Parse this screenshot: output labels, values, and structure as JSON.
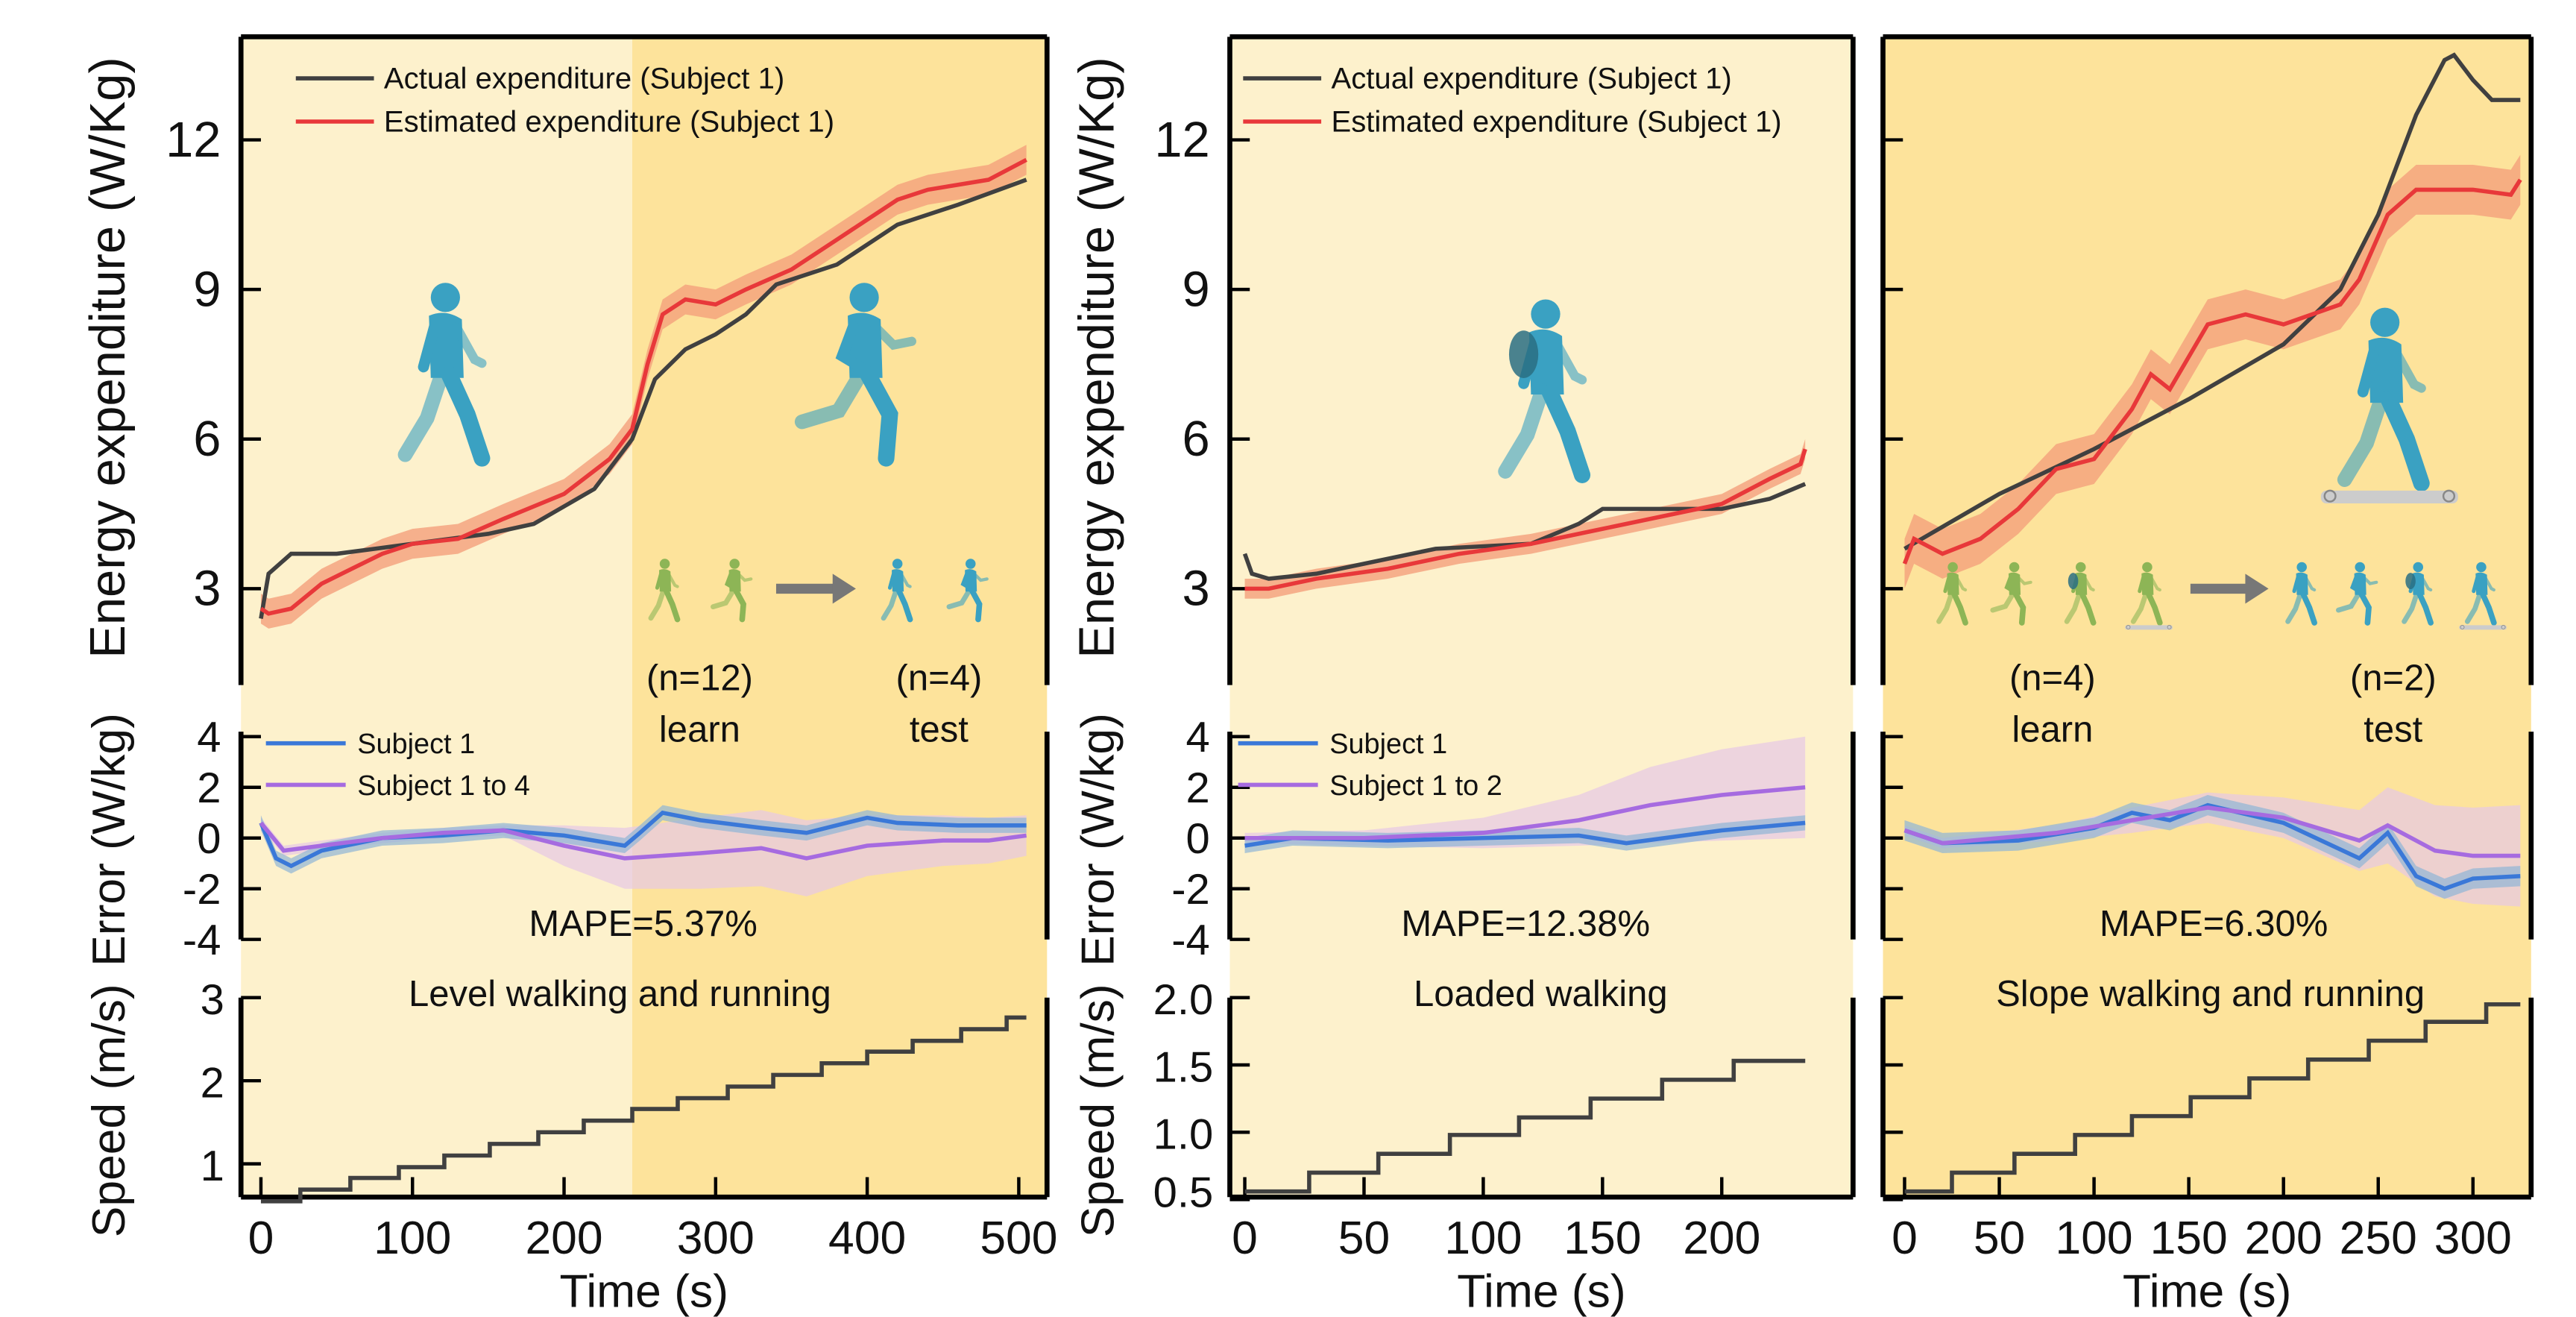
{
  "colors": {
    "light_bg": "#fdf1cc",
    "dark_bg": "#fde39b",
    "actual": "#404040",
    "estimated": "#e8383a",
    "estimated_band": "#f4a07c",
    "subject1": "#3a78d8",
    "subject1_band": "#8fb5d6",
    "group": "#a66be0",
    "group_band": "#e6c7e6",
    "speed": "#404040",
    "learn_figure": "#8db556",
    "test_figure": "#3aa1c2",
    "arrow": "#777777"
  },
  "chart_data": [
    {
      "type": "line",
      "title": "Level walking and running",
      "mape": "MAPE=5.37%",
      "background": {
        "light_until": 245,
        "after": "dark"
      },
      "xlabel": "Time (s)",
      "xlim": [
        -13,
        519
      ],
      "xticks": [
        0,
        100,
        200,
        300,
        400,
        500
      ],
      "xtick_labels": [
        "0",
        "100",
        "200",
        "300",
        "400",
        "500"
      ],
      "learn": {
        "n": "(n=12)",
        "label": "learn"
      },
      "test": {
        "n": "(n=4)",
        "label": "test"
      },
      "energy": {
        "ylabel": "Energy expenditure (W/Kg)",
        "ylim": [
          1.1,
          14.1
        ],
        "yticks": [
          3,
          6,
          9,
          12
        ],
        "ytick_labels": [
          "3",
          "6",
          "9",
          "12"
        ],
        "legend": [
          "Actual expenditure (Subject 1)",
          "Estimated expenditure (Subject 1)"
        ],
        "actual": [
          [
            0,
            2.4
          ],
          [
            5,
            3.3
          ],
          [
            20,
            3.7
          ],
          [
            50,
            3.7
          ],
          [
            100,
            3.9
          ],
          [
            150,
            4.1
          ],
          [
            180,
            4.3
          ],
          [
            220,
            5.0
          ],
          [
            245,
            6.0
          ],
          [
            260,
            7.2
          ],
          [
            280,
            7.8
          ],
          [
            300,
            8.1
          ],
          [
            320,
            8.5
          ],
          [
            340,
            9.1
          ],
          [
            380,
            9.5
          ],
          [
            420,
            10.3
          ],
          [
            460,
            10.7
          ],
          [
            505,
            11.2
          ]
        ],
        "estimated": [
          [
            0,
            2.6
          ],
          [
            5,
            2.5
          ],
          [
            20,
            2.6
          ],
          [
            40,
            3.1
          ],
          [
            60,
            3.4
          ],
          [
            80,
            3.7
          ],
          [
            100,
            3.9
          ],
          [
            130,
            4.0
          ],
          [
            160,
            4.4
          ],
          [
            200,
            4.9
          ],
          [
            230,
            5.6
          ],
          [
            245,
            6.2
          ],
          [
            255,
            7.5
          ],
          [
            265,
            8.5
          ],
          [
            280,
            8.8
          ],
          [
            300,
            8.7
          ],
          [
            320,
            9.0
          ],
          [
            350,
            9.4
          ],
          [
            380,
            10.0
          ],
          [
            420,
            10.8
          ],
          [
            440,
            11.0
          ],
          [
            460,
            11.1
          ],
          [
            480,
            11.2
          ],
          [
            505,
            11.6
          ]
        ],
        "estimated_ci": 0.3
      },
      "error": {
        "ylabel": "Error (W/kg)",
        "ylim": [
          -4,
          4
        ],
        "yticks": [
          4,
          2,
          0,
          -2,
          -4
        ],
        "ytick_labels": [
          "4",
          "2",
          "0",
          "-2",
          "-4"
        ],
        "legend": [
          "Subject 1",
          "Subject 1 to 4"
        ],
        "subject1": [
          [
            0,
            0.6
          ],
          [
            10,
            -0.8
          ],
          [
            20,
            -1.1
          ],
          [
            40,
            -0.5
          ],
          [
            80,
            0
          ],
          [
            120,
            0.1
          ],
          [
            160,
            0.3
          ],
          [
            200,
            0.1
          ],
          [
            240,
            -0.3
          ],
          [
            250,
            0.2
          ],
          [
            265,
            1.0
          ],
          [
            290,
            0.7
          ],
          [
            330,
            0.4
          ],
          [
            360,
            0.2
          ],
          [
            400,
            0.8
          ],
          [
            420,
            0.6
          ],
          [
            460,
            0.5
          ],
          [
            505,
            0.5
          ]
        ],
        "subject1_ci": 0.3,
        "group": [
          [
            0,
            0.6
          ],
          [
            15,
            -0.5
          ],
          [
            40,
            -0.3
          ],
          [
            80,
            0
          ],
          [
            120,
            0.2
          ],
          [
            160,
            0.3
          ],
          [
            200,
            -0.3
          ],
          [
            240,
            -0.8
          ],
          [
            290,
            -0.6
          ],
          [
            330,
            -0.4
          ],
          [
            360,
            -0.8
          ],
          [
            400,
            -0.3
          ],
          [
            450,
            -0.1
          ],
          [
            480,
            -0.1
          ],
          [
            505,
            0.1
          ]
        ],
        "group_ci": [
          0.2,
          0.2,
          0.2,
          0.2,
          0.2,
          0.2,
          0.8,
          1.2,
          1.4,
          1.5,
          1.5,
          1.2,
          1.0,
          0.9,
          0.8
        ]
      },
      "speed": {
        "ylabel": "Speed (m/s)",
        "ylim": [
          0.6,
          3.0
        ],
        "yticks": [
          1,
          2,
          3
        ],
        "ytick_labels": [
          "1",
          "2",
          "3"
        ],
        "steps": [
          [
            0,
            0.55
          ],
          [
            26,
            0.69
          ],
          [
            59,
            0.83
          ],
          [
            91,
            0.96
          ],
          [
            121,
            1.1
          ],
          [
            151,
            1.24
          ],
          [
            183,
            1.38
          ],
          [
            213,
            1.52
          ],
          [
            245,
            1.66
          ],
          [
            275,
            1.79
          ],
          [
            308,
            1.93
          ],
          [
            338,
            2.07
          ],
          [
            370,
            2.21
          ],
          [
            400,
            2.35
          ],
          [
            430,
            2.48
          ],
          [
            462,
            2.62
          ],
          [
            492,
            2.76
          ]
        ],
        "end": 505
      }
    },
    {
      "type": "line",
      "title": "Loaded walking",
      "mape": "MAPE=12.38%",
      "background": {
        "light_until": 1000,
        "after": "dark"
      },
      "xlabel": "Time (s)",
      "xlim": [
        -6,
        255
      ],
      "xticks": [
        0,
        50,
        100,
        150,
        200
      ],
      "xtick_labels": [
        "0",
        "50",
        "100",
        "150",
        "200"
      ],
      "energy": {
        "ylabel": "Energy expenditure (W/Kg)",
        "ylim": [
          1.1,
          14.1
        ],
        "yticks": [
          3,
          6,
          9,
          12
        ],
        "ytick_labels": [
          "3",
          "6",
          "9",
          "12"
        ],
        "legend": [
          "Actual expenditure (Subject 1)",
          "Estimated expenditure (Subject 1)"
        ],
        "actual": [
          [
            0,
            3.7
          ],
          [
            3,
            3.3
          ],
          [
            10,
            3.2
          ],
          [
            30,
            3.3
          ],
          [
            60,
            3.6
          ],
          [
            80,
            3.8
          ],
          [
            120,
            3.9
          ],
          [
            140,
            4.3
          ],
          [
            150,
            4.6
          ],
          [
            170,
            4.6
          ],
          [
            200,
            4.6
          ],
          [
            220,
            4.8
          ],
          [
            235,
            5.1
          ]
        ],
        "estimated": [
          [
            0,
            3.0
          ],
          [
            10,
            3.0
          ],
          [
            30,
            3.2
          ],
          [
            60,
            3.4
          ],
          [
            90,
            3.7
          ],
          [
            120,
            3.9
          ],
          [
            150,
            4.2
          ],
          [
            170,
            4.4
          ],
          [
            200,
            4.7
          ],
          [
            220,
            5.2
          ],
          [
            233,
            5.5
          ],
          [
            235,
            5.8
          ]
        ],
        "estimated_ci": 0.2
      },
      "error": {
        "ylabel": "Error (W/kg)",
        "ylim": [
          -4,
          4
        ],
        "yticks": [
          4,
          2,
          0,
          -2,
          -4
        ],
        "ytick_labels": [
          "4",
          "2",
          "0",
          "-2",
          "-4"
        ],
        "legend": [
          "Subject 1",
          "Subject 1 to 2"
        ],
        "subject1": [
          [
            0,
            -0.3
          ],
          [
            20,
            0
          ],
          [
            60,
            -0.1
          ],
          [
            100,
            0
          ],
          [
            140,
            0.1
          ],
          [
            160,
            -0.2
          ],
          [
            200,
            0.3
          ],
          [
            235,
            0.6
          ]
        ],
        "subject1_ci": 0.3,
        "group": [
          [
            0,
            0
          ],
          [
            50,
            0
          ],
          [
            100,
            0.2
          ],
          [
            140,
            0.7
          ],
          [
            170,
            1.3
          ],
          [
            200,
            1.7
          ],
          [
            235,
            2.0
          ]
        ],
        "group_ci": [
          0.2,
          0.3,
          0.6,
          1.0,
          1.5,
          1.8,
          2.0
        ]
      },
      "speed": {
        "ylabel": "Speed (m/s)",
        "ylim": [
          0.5,
          2.0
        ],
        "yticks": [
          0.5,
          1.0,
          1.5,
          2.0
        ],
        "ytick_labels": [
          "0.5",
          "1.0",
          "1.5",
          "2.0"
        ],
        "steps": [
          [
            0,
            0.56
          ],
          [
            27,
            0.7
          ],
          [
            56,
            0.84
          ],
          [
            86,
            0.98
          ],
          [
            115,
            1.11
          ],
          [
            145,
            1.25
          ],
          [
            175,
            1.39
          ],
          [
            205,
            1.53
          ]
        ],
        "end": 235
      }
    },
    {
      "type": "line",
      "title": "Slope  walking and running",
      "mape": "MAPE=6.30%",
      "background": {
        "light_until": -100,
        "after": "dark"
      },
      "xlabel": "Time (s)",
      "xlim": [
        -11,
        331
      ],
      "xticks": [
        0,
        50,
        100,
        150,
        200,
        250,
        300
      ],
      "xtick_labels": [
        "0",
        "50",
        "100",
        "150",
        "200",
        "250",
        "300"
      ],
      "learn": {
        "n": "(n=4)",
        "label": "learn"
      },
      "test": {
        "n": "(n=2)",
        "label": "test"
      },
      "energy": {
        "ylim": [
          1.1,
          14.1
        ],
        "yticks": [
          3,
          6,
          9,
          12
        ],
        "actual": [
          [
            0,
            3.8
          ],
          [
            50,
            4.9
          ],
          [
            100,
            5.8
          ],
          [
            150,
            6.8
          ],
          [
            200,
            7.9
          ],
          [
            230,
            9.0
          ],
          [
            250,
            10.5
          ],
          [
            270,
            12.5
          ],
          [
            285,
            13.6
          ],
          [
            290,
            13.7
          ],
          [
            300,
            13.2
          ],
          [
            310,
            12.8
          ],
          [
            325,
            12.8
          ]
        ],
        "estimated": [
          [
            0,
            3.5
          ],
          [
            5,
            4.0
          ],
          [
            20,
            3.7
          ],
          [
            40,
            4.0
          ],
          [
            60,
            4.6
          ],
          [
            80,
            5.4
          ],
          [
            100,
            5.6
          ],
          [
            120,
            6.6
          ],
          [
            130,
            7.3
          ],
          [
            140,
            7.0
          ],
          [
            160,
            8.3
          ],
          [
            180,
            8.5
          ],
          [
            200,
            8.3
          ],
          [
            230,
            8.7
          ],
          [
            240,
            9.2
          ],
          [
            255,
            10.5
          ],
          [
            270,
            11.0
          ],
          [
            300,
            11.0
          ],
          [
            320,
            10.9
          ],
          [
            325,
            11.2
          ]
        ],
        "estimated_ci": 0.5
      },
      "error": {
        "ylim": [
          -4,
          4
        ],
        "yticks": [
          4,
          2,
          0,
          -2,
          -4
        ],
        "subject1": [
          [
            0,
            0.3
          ],
          [
            20,
            -0.2
          ],
          [
            60,
            -0.1
          ],
          [
            100,
            0.4
          ],
          [
            120,
            1.0
          ],
          [
            140,
            0.7
          ],
          [
            160,
            1.3
          ],
          [
            200,
            0.6
          ],
          [
            240,
            -0.8
          ],
          [
            255,
            0.2
          ],
          [
            270,
            -1.5
          ],
          [
            285,
            -2.0
          ],
          [
            300,
            -1.6
          ],
          [
            325,
            -1.5
          ]
        ],
        "subject1_ci": 0.4,
        "group": [
          [
            0,
            0.3
          ],
          [
            20,
            -0.2
          ],
          [
            80,
            0.2
          ],
          [
            120,
            0.7
          ],
          [
            160,
            1.2
          ],
          [
            200,
            0.8
          ],
          [
            240,
            -0.1
          ],
          [
            255,
            0.5
          ],
          [
            280,
            -0.5
          ],
          [
            300,
            -0.7
          ],
          [
            325,
            -0.7
          ]
        ],
        "group_ci": [
          0.2,
          0.2,
          0.3,
          0.5,
          0.6,
          0.8,
          1.2,
          1.5,
          1.8,
          1.9,
          2.0
        ]
      },
      "speed": {
        "ylim": [
          0.5,
          2.0
        ],
        "yticks": [
          0.5,
          1.0,
          1.5,
          2.0
        ],
        "steps": [
          [
            0,
            0.56
          ],
          [
            25,
            0.7
          ],
          [
            58,
            0.84
          ],
          [
            90,
            0.98
          ],
          [
            120,
            1.12
          ],
          [
            151,
            1.26
          ],
          [
            182,
            1.4
          ],
          [
            213,
            1.54
          ],
          [
            245,
            1.68
          ],
          [
            275,
            1.82
          ],
          [
            307,
            1.95
          ]
        ],
        "end": 325
      }
    }
  ]
}
